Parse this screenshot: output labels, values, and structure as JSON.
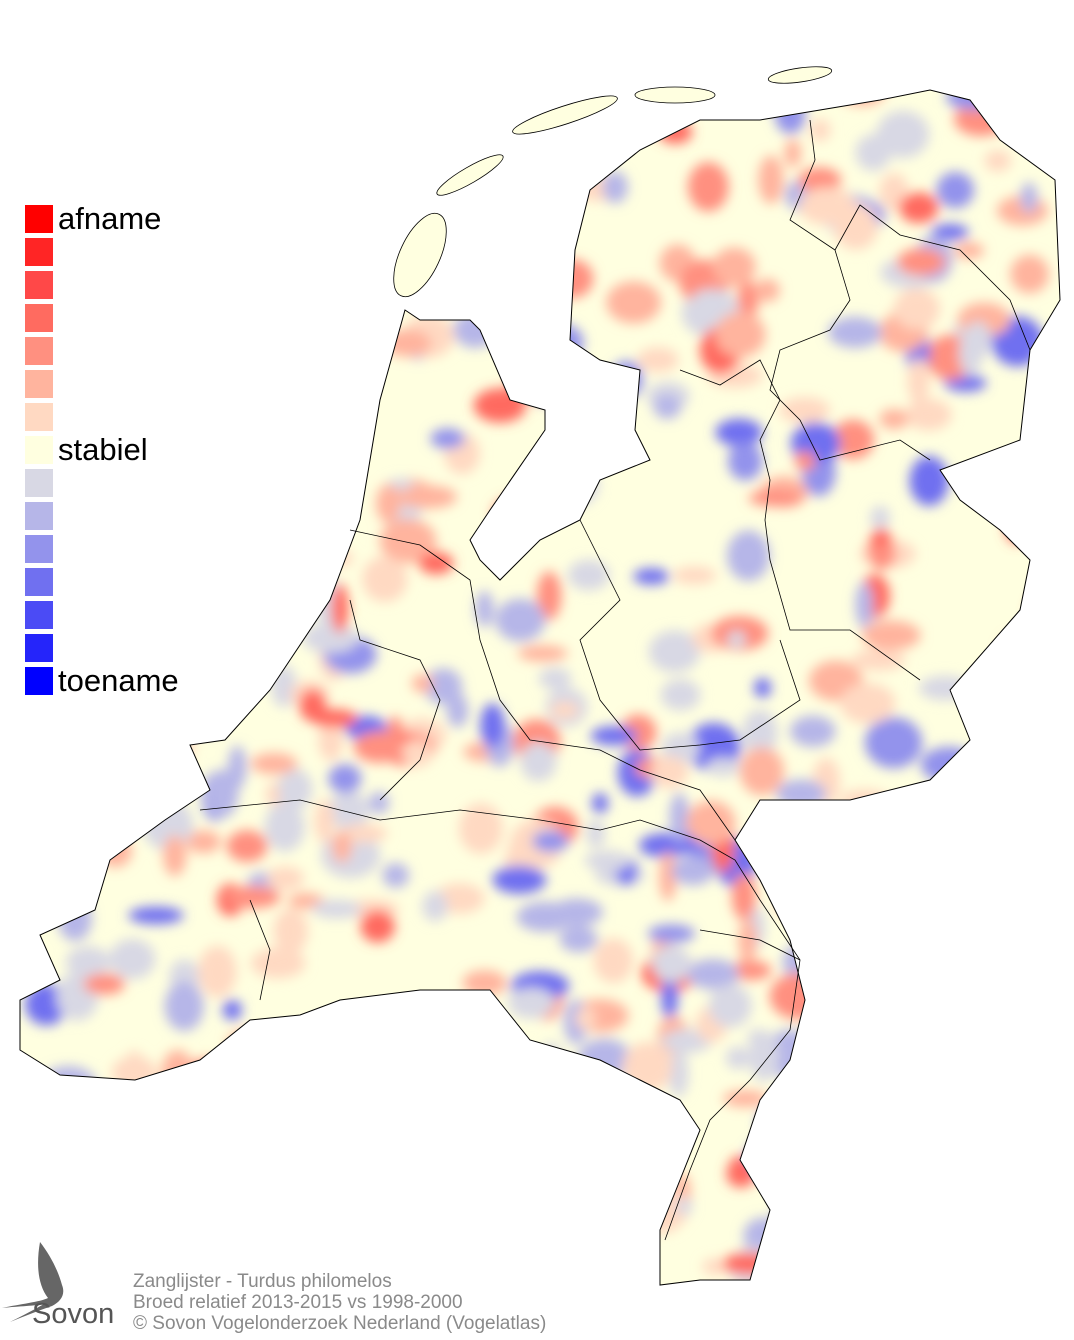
{
  "legend": {
    "items": [
      {
        "color": "#ff0000",
        "label": "afname"
      },
      {
        "color": "#ff2525",
        "label": ""
      },
      {
        "color": "#ff4848",
        "label": ""
      },
      {
        "color": "#ff6b60",
        "label": ""
      },
      {
        "color": "#ff9080",
        "label": ""
      },
      {
        "color": "#ffb49e",
        "label": ""
      },
      {
        "color": "#ffd9c2",
        "label": ""
      },
      {
        "color": "#ffffe0",
        "label": "stabiel"
      },
      {
        "color": "#d8d8e4",
        "label": ""
      },
      {
        "color": "#b6b6e8",
        "label": ""
      },
      {
        "color": "#9393ec",
        "label": ""
      },
      {
        "color": "#7070f0",
        "label": ""
      },
      {
        "color": "#4b4bf5",
        "label": ""
      },
      {
        "color": "#2525fa",
        "label": ""
      },
      {
        "color": "#0000ff",
        "label": "toename"
      }
    ]
  },
  "footer": {
    "species": "Zanglijster - Turdus philomelos",
    "description": "Broed relatief 2013-2015 vs 1998-2000",
    "copyright": "© Sovon Vogelonderzoek Nederland (Vogelatlas)"
  },
  "logo": {
    "text": "Sovon",
    "icon": "swallow-icon"
  }
}
